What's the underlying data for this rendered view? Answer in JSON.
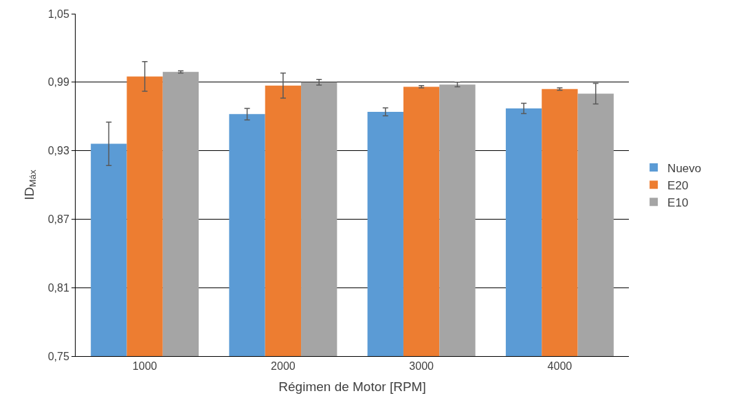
{
  "chart_data": {
    "type": "bar",
    "xlabel": "Régimen de Motor [RPM]",
    "ylabel": "ID$_{Máx}$",
    "categories": [
      "1000",
      "2000",
      "3000",
      "4000"
    ],
    "series": [
      {
        "name": "Nuevo",
        "color": "#5b9bd5",
        "values": [
          0.936,
          0.962,
          0.964,
          0.967
        ],
        "errors": [
          0.019,
          0.005,
          0.0035,
          0.0045
        ]
      },
      {
        "name": "E20",
        "color": "#ed7d31",
        "values": [
          0.995,
          0.987,
          0.986,
          0.984
        ],
        "errors": [
          0.013,
          0.011,
          0.001,
          0.001
        ]
      },
      {
        "name": "E10",
        "color": "#a5a5a5",
        "values": [
          0.999,
          0.99,
          0.988,
          0.98
        ],
        "errors": [
          0.001,
          0.0025,
          0.002,
          0.009
        ]
      }
    ],
    "ylim": [
      0.75,
      1.05
    ],
    "yticks": [
      {
        "value": 0.75,
        "label": "0,75"
      },
      {
        "value": 0.81,
        "label": "0,81"
      },
      {
        "value": 0.87,
        "label": "0,87"
      },
      {
        "value": 0.93,
        "label": "0,93"
      },
      {
        "value": 0.99,
        "label": "0,99"
      },
      {
        "value": 1.05,
        "label": "1,05"
      }
    ],
    "grid": "y",
    "legend": "right"
  }
}
